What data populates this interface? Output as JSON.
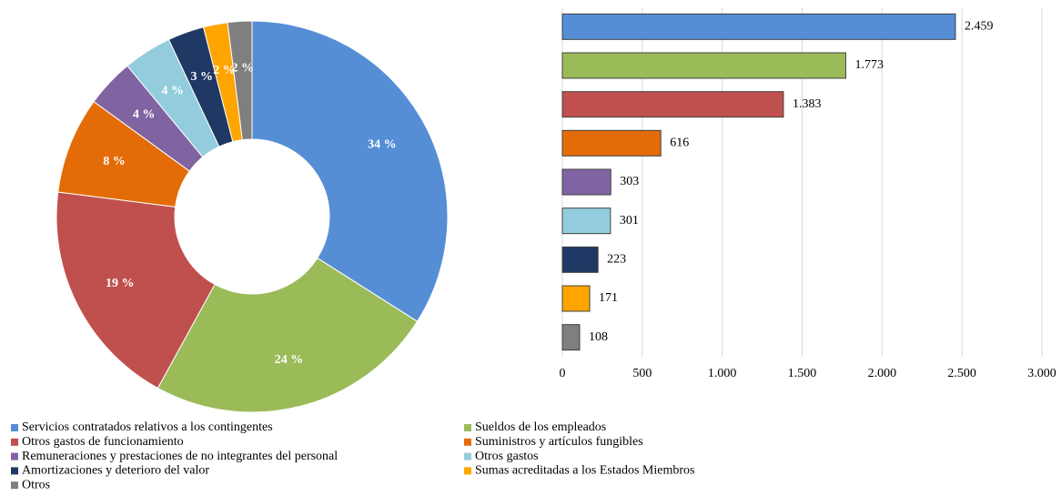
{
  "chart_data": [
    {
      "type": "pie",
      "categories": [
        "Servicios contratados relativos a los contingentes",
        "Sueldos de los empleados",
        "Otros gastos de funcionamiento",
        "Suministros y artículos fungibles",
        "Remuneraciones y prestaciones de no integrantes del personal",
        "Otros gastos",
        "Amortizaciones y deterioro del valor",
        "Sumas acreditadas a los Estados Miembros",
        "Otros"
      ],
      "values": [
        34,
        24,
        19,
        8,
        4,
        4,
        3,
        2,
        2
      ],
      "value_labels": [
        "34 %",
        "24 %",
        "19 %",
        "8 %",
        "4 %",
        "4 %",
        "3 %",
        "2 %",
        "2 %"
      ],
      "colors": [
        "#558ed5",
        "#9bbb59",
        "#c0504d",
        "#e36c09",
        "#8064a2",
        "#93cddd",
        "#1f3864",
        "#ffa500",
        "#7f7f7f"
      ],
      "legend": "bottom"
    },
    {
      "type": "bar",
      "values": [
        2459,
        1773,
        1383,
        616,
        303,
        301,
        223,
        171,
        108
      ],
      "value_labels": [
        "2.459",
        "1.773",
        "1.383",
        "616",
        "303",
        "301",
        "223",
        "171",
        "108"
      ],
      "colors": [
        "#558ed5",
        "#9bbb59",
        "#c0504d",
        "#e36c09",
        "#8064a2",
        "#93cddd",
        "#1f3864",
        "#ffa500",
        "#7f7f7f"
      ],
      "xlim": [
        0,
        3000
      ],
      "xticks": [
        0,
        500,
        {
          "value": 1000,
          "label": "1.000"
        },
        {
          "value": 1500,
          "label": "1.500"
        },
        {
          "value": 2000,
          "label": "2.000"
        },
        {
          "value": 2500,
          "label": "2.500"
        },
        {
          "value": 3000,
          "label": "3.000"
        }
      ],
      "grid": true
    }
  ]
}
